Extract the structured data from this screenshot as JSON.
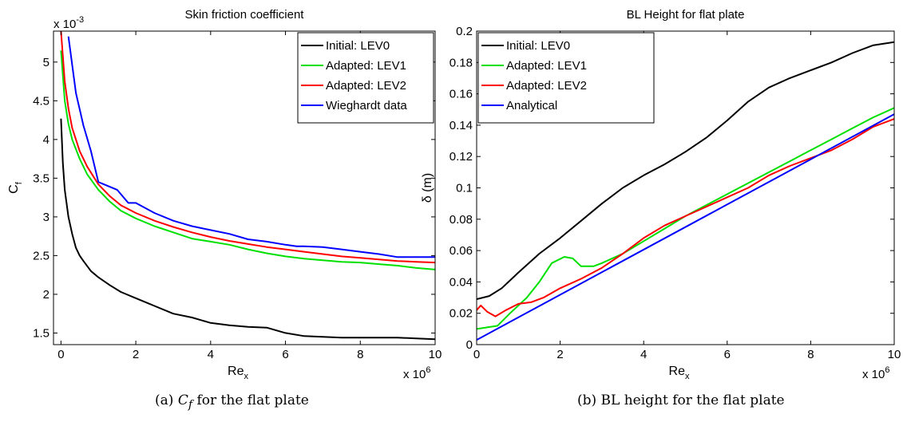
{
  "chart_data": [
    {
      "type": "line",
      "title": "Skin friction coefficient",
      "xlabel": "Re",
      "xlabel_sub": "x",
      "ylabel": "C",
      "ylabel_sub": "f",
      "x_multiplier": "x 10",
      "x_multiplier_exp": "6",
      "y_multiplier": "x 10",
      "y_multiplier_exp": "-3",
      "xlim": [
        -0.2,
        10
      ],
      "ylim": [
        1.35,
        5.4
      ],
      "xticks": [
        "0",
        "2",
        "4",
        "6",
        "8",
        "10"
      ],
      "yticks": [
        "1.5",
        "2",
        "2.5",
        "3",
        "3.5",
        "4",
        "4.5",
        "5"
      ],
      "grid": false,
      "legend_position": "top-right",
      "series": [
        {
          "name": "Initial: LEV0",
          "color": "#000000",
          "x": [
            0,
            0.05,
            0.1,
            0.2,
            0.3,
            0.4,
            0.5,
            0.6,
            0.8,
            1.0,
            1.3,
            1.6,
            2.0,
            2.5,
            3.0,
            3.5,
            4.0,
            4.5,
            5.0,
            5.5,
            6.0,
            6.5,
            7.0,
            7.5,
            8.0,
            8.5,
            9.0,
            9.5,
            10.0
          ],
          "y": [
            4.27,
            3.7,
            3.35,
            3.0,
            2.78,
            2.6,
            2.5,
            2.43,
            2.3,
            2.22,
            2.12,
            2.03,
            1.95,
            1.85,
            1.75,
            1.7,
            1.63,
            1.6,
            1.58,
            1.57,
            1.5,
            1.46,
            1.45,
            1.44,
            1.44,
            1.44,
            1.44,
            1.43,
            1.42
          ]
        },
        {
          "name": "Adapted: LEV1",
          "color": "#00e000",
          "x": [
            0,
            0.1,
            0.2,
            0.3,
            0.5,
            0.7,
            1.0,
            1.3,
            1.6,
            2.0,
            2.5,
            3.0,
            3.5,
            4.0,
            4.5,
            5.0,
            5.5,
            6.0,
            6.5,
            7.0,
            7.5,
            8.0,
            8.5,
            9.0,
            9.5,
            10.0
          ],
          "y": [
            5.15,
            4.5,
            4.2,
            4.0,
            3.75,
            3.55,
            3.35,
            3.2,
            3.08,
            2.98,
            2.88,
            2.8,
            2.72,
            2.68,
            2.64,
            2.58,
            2.53,
            2.49,
            2.46,
            2.44,
            2.42,
            2.41,
            2.39,
            2.37,
            2.34,
            2.32
          ]
        },
        {
          "name": "Adapted: LEV2",
          "color": "#ff0000",
          "x": [
            0,
            0.1,
            0.2,
            0.3,
            0.5,
            0.7,
            1.0,
            1.3,
            1.6,
            2.0,
            2.5,
            3.0,
            3.5,
            4.0,
            4.5,
            5.0,
            5.5,
            6.0,
            6.5,
            7.0,
            7.5,
            8.0,
            8.5,
            9.0,
            9.5,
            10.0
          ],
          "y": [
            5.4,
            4.75,
            4.4,
            4.15,
            3.85,
            3.65,
            3.42,
            3.27,
            3.15,
            3.05,
            2.95,
            2.87,
            2.8,
            2.74,
            2.69,
            2.65,
            2.61,
            2.58,
            2.55,
            2.52,
            2.49,
            2.47,
            2.45,
            2.43,
            2.42,
            2.41
          ]
        },
        {
          "name": "Wieghardt data",
          "color": "#0000ff",
          "x": [
            0.2,
            0.4,
            0.6,
            0.8,
            1.0,
            1.5,
            1.8,
            2.0,
            2.5,
            3.0,
            3.5,
            4.0,
            4.5,
            5.0,
            5.5,
            6.0,
            6.3,
            6.5,
            7.0,
            7.5,
            8.0,
            8.5,
            9.0,
            9.5,
            10.0
          ],
          "y": [
            5.33,
            4.6,
            4.18,
            3.85,
            3.45,
            3.35,
            3.18,
            3.18,
            3.05,
            2.95,
            2.88,
            2.83,
            2.78,
            2.71,
            2.68,
            2.64,
            2.62,
            2.62,
            2.61,
            2.58,
            2.55,
            2.52,
            2.48,
            2.48,
            2.48
          ]
        }
      ]
    },
    {
      "type": "line",
      "title": "BL Height for flat plate",
      "xlabel": "Re",
      "xlabel_sub": "x",
      "ylabel": "δ (m)",
      "x_multiplier": "x 10",
      "x_multiplier_exp": "6",
      "xlim": [
        0,
        10
      ],
      "ylim": [
        0,
        0.2
      ],
      "xticks": [
        "0",
        "2",
        "4",
        "6",
        "8",
        "10"
      ],
      "yticks": [
        "0",
        "0.02",
        "0.04",
        "0.06",
        "0.08",
        "0.1",
        "0.12",
        "0.14",
        "0.16",
        "0.18",
        "0.2"
      ],
      "grid": false,
      "legend_position": "top-left",
      "series": [
        {
          "name": "Initial: LEV0",
          "color": "#000000",
          "x": [
            0,
            0.3,
            0.6,
            1.0,
            1.5,
            2.0,
            2.5,
            3.0,
            3.5,
            4.0,
            4.5,
            5.0,
            5.5,
            6.0,
            6.5,
            7.0,
            7.5,
            8.0,
            8.5,
            9.0,
            9.5,
            10.0
          ],
          "y": [
            0.029,
            0.031,
            0.036,
            0.046,
            0.058,
            0.068,
            0.079,
            0.09,
            0.1,
            0.108,
            0.115,
            0.123,
            0.132,
            0.143,
            0.155,
            0.164,
            0.17,
            0.175,
            0.18,
            0.186,
            0.191,
            0.193
          ]
        },
        {
          "name": "Adapted: LEV1",
          "color": "#00e000",
          "x": [
            0,
            0.5,
            0.8,
            1.2,
            1.5,
            1.8,
            2.1,
            2.3,
            2.5,
            2.8,
            3.0,
            3.5,
            4.0,
            4.5,
            5.0,
            5.5,
            6.0,
            6.5,
            7.0,
            7.5,
            8.0,
            8.5,
            9.0,
            9.5,
            10.0
          ],
          "y": [
            0.01,
            0.012,
            0.02,
            0.03,
            0.04,
            0.052,
            0.056,
            0.055,
            0.05,
            0.05,
            0.052,
            0.058,
            0.066,
            0.074,
            0.082,
            0.089,
            0.096,
            0.103,
            0.11,
            0.117,
            0.124,
            0.131,
            0.138,
            0.145,
            0.151
          ]
        },
        {
          "name": "Adapted: LEV2",
          "color": "#ff0000",
          "x": [
            0,
            0.1,
            0.25,
            0.45,
            0.7,
            1.0,
            1.3,
            1.6,
            2.0,
            2.5,
            3.0,
            3.5,
            4.0,
            4.5,
            5.0,
            5.5,
            6.0,
            6.5,
            7.0,
            7.5,
            8.0,
            8.5,
            9.0,
            9.5,
            10.0
          ],
          "y": [
            0.022,
            0.025,
            0.021,
            0.018,
            0.022,
            0.026,
            0.027,
            0.03,
            0.036,
            0.042,
            0.049,
            0.058,
            0.068,
            0.076,
            0.082,
            0.088,
            0.094,
            0.1,
            0.108,
            0.114,
            0.119,
            0.124,
            0.131,
            0.139,
            0.144
          ]
        },
        {
          "name": "Analytical",
          "color": "#0000ff",
          "x": [
            0,
            10
          ],
          "y": [
            0.003,
            0.147
          ]
        }
      ]
    }
  ],
  "captions": [
    {
      "prefix": "(a) ",
      "math": "C",
      "math_sub": "f",
      "rest": " for the flat plate"
    },
    {
      "text": "(b) BL height for the flat plate"
    }
  ]
}
